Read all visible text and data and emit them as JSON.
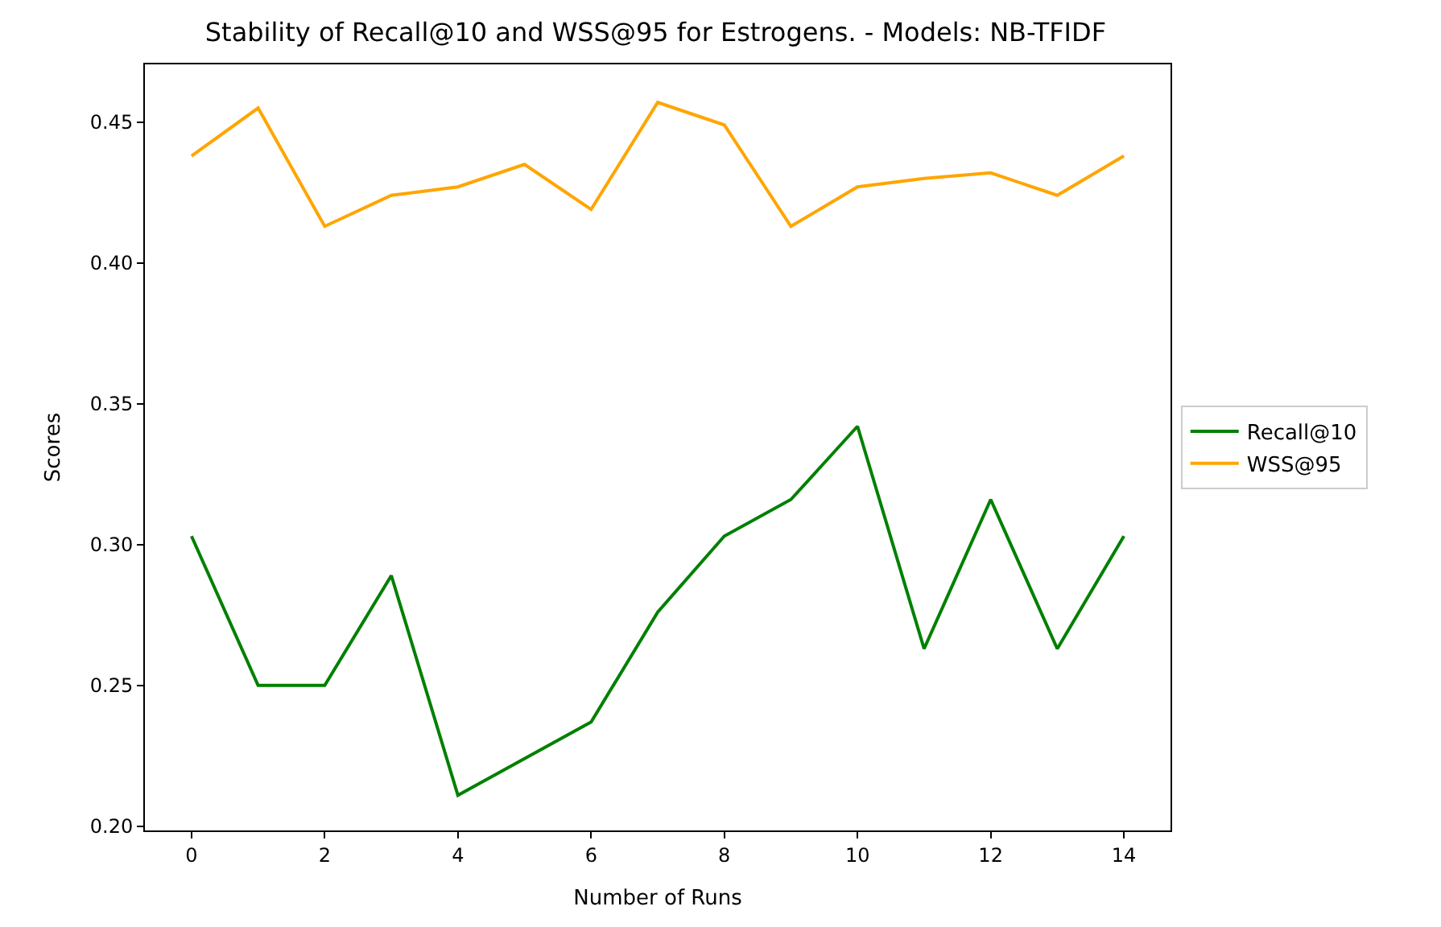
{
  "chart_data": {
    "type": "line",
    "title": "Stability of Recall@10 and WSS@95 for Estrogens. - Models: NB-TFIDF",
    "xlabel": "Number of Runs",
    "ylabel": "Scores",
    "x": [
      0,
      1,
      2,
      3,
      4,
      5,
      6,
      7,
      8,
      9,
      10,
      11,
      12,
      13,
      14
    ],
    "series": [
      {
        "name": "Recall@10",
        "color": "#008000",
        "values": [
          0.303,
          0.25,
          0.25,
          0.289,
          0.211,
          0.224,
          0.237,
          0.276,
          0.303,
          0.316,
          0.342,
          0.263,
          0.316,
          0.263,
          0.303
        ]
      },
      {
        "name": "WSS@95",
        "color": "#ffa500",
        "values": [
          0.438,
          0.455,
          0.413,
          0.424,
          0.427,
          0.435,
          0.419,
          0.457,
          0.449,
          0.413,
          0.427,
          0.43,
          0.432,
          0.424,
          0.438
        ]
      }
    ],
    "xlim": [
      -0.7,
      14.7
    ],
    "xticks": [
      0,
      2,
      4,
      6,
      8,
      10,
      12,
      14
    ],
    "ylim": [
      0.1985,
      0.4705
    ],
    "yticks": [
      {
        "value": 0.2,
        "label": "0.20"
      },
      0.25,
      {
        "value": 0.3,
        "label": "0.30"
      },
      0.35,
      {
        "value": 0.4,
        "label": "0.40"
      },
      0.45
    ],
    "legend": "right",
    "marker": "none",
    "line_style": "solid"
  }
}
